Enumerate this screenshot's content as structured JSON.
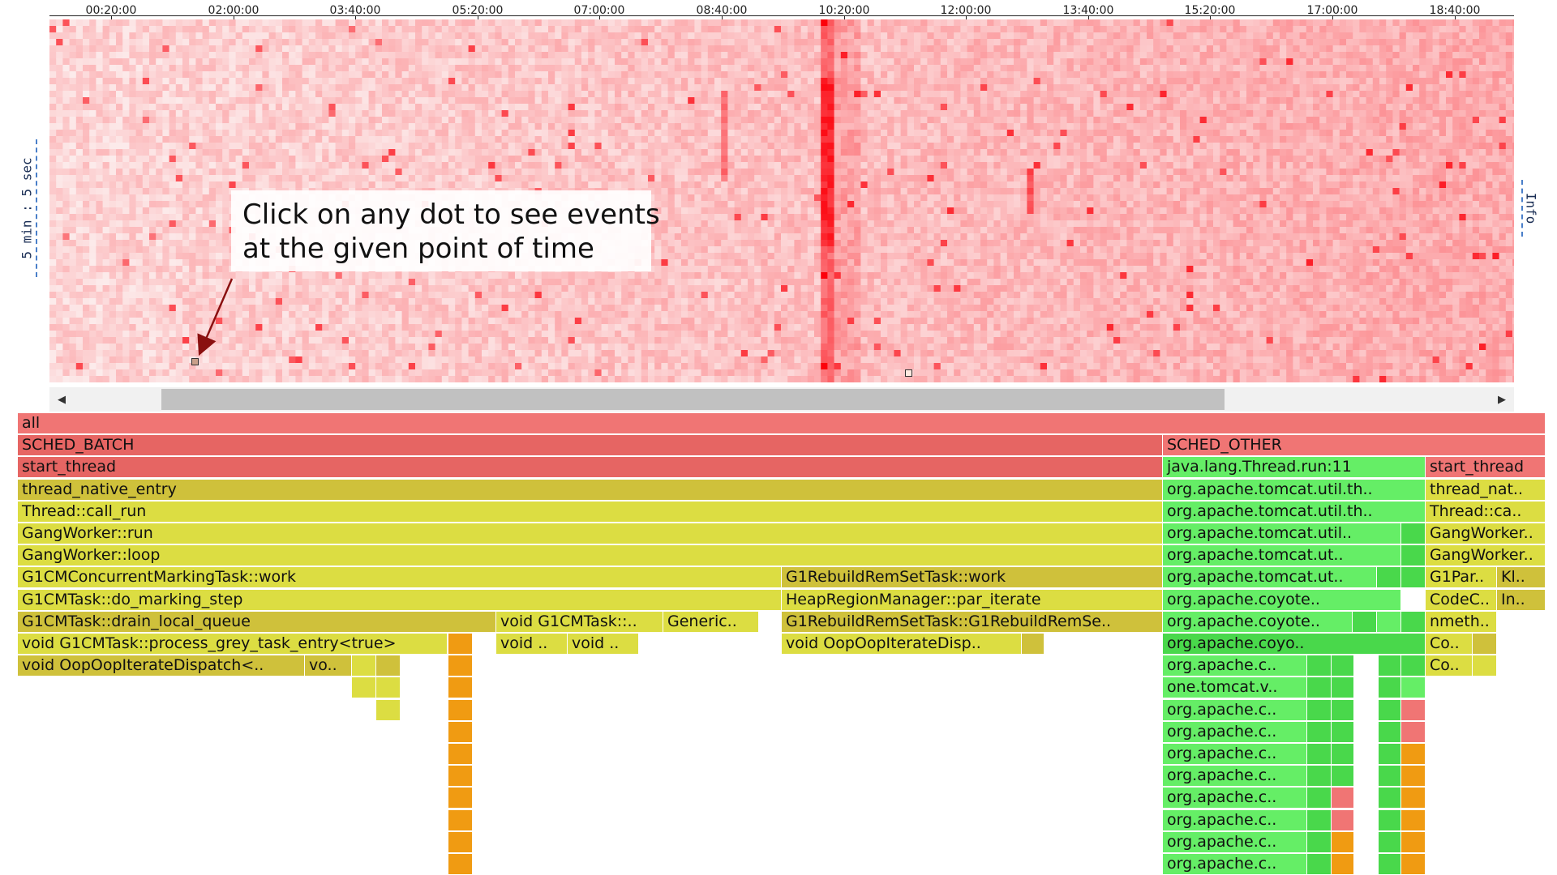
{
  "timeline": {
    "tick_labels": [
      "00:20:00",
      "02:00:00",
      "03:40:00",
      "05:20:00",
      "07:00:00",
      "08:40:00",
      "10:20:00",
      "12:00:00",
      "13:40:00",
      "15:20:00",
      "17:00:00",
      "18:40:00"
    ]
  },
  "heatmap": {
    "y_axis_label": "5 min : 5 sec",
    "info_label": "Info",
    "callout_line1": "Click on any dot to see events",
    "callout_line2": "at the given point of time"
  },
  "scrollbar": {
    "left_arrow_icon": "triangle-left-icon",
    "right_arrow_icon": "triangle-right-icon"
  },
  "colors": {
    "root_red": "#f07574",
    "deep_red": "#e66563",
    "native_yellow": "#dcdd42",
    "native_olive": "#cfc13b",
    "java_green": "#65ee66",
    "dark_green": "#49d84b",
    "kernel_orange": "#f09b12",
    "heat_hot": "#e5000d",
    "heat_cold": "#fde9e9"
  },
  "flamegraph": {
    "frames": [
      {
        "label": "all",
        "c": "red"
      },
      {
        "label": "SCHED_BATCH",
        "c": "deep"
      },
      {
        "label": "SCHED_OTHER",
        "c": "red"
      },
      {
        "label": "start_thread",
        "c": "deep"
      },
      {
        "label": "java.lang.Thread.run:11",
        "c": "green"
      },
      {
        "label": "start_thread",
        "c": "red"
      },
      {
        "label": "thread_native_entry",
        "c": "olive"
      },
      {
        "label": "org.apache.tomcat.util.th..",
        "c": "green"
      },
      {
        "label": "thread_nat..",
        "c": "yellow"
      },
      {
        "label": "Thread::call_run",
        "c": "yellow"
      },
      {
        "label": "org.apache.tomcat.util.th..",
        "c": "green"
      },
      {
        "label": "Thread::ca..",
        "c": "yellow"
      },
      {
        "label": "GangWorker::run",
        "c": "yellow"
      },
      {
        "label": "org.apache.tomcat.util..",
        "c": "green"
      },
      {
        "label": "GangWorker..",
        "c": "yellow"
      },
      {
        "label": "GangWorker::loop",
        "c": "yellow"
      },
      {
        "label": "org.apache.tomcat.ut..",
        "c": "green"
      },
      {
        "label": "GangWorker..",
        "c": "yellow"
      },
      {
        "label": "G1CMConcurrentMarkingTask::work",
        "c": "yellow"
      },
      {
        "label": "G1RebuildRemSetTask::work",
        "c": "olive"
      },
      {
        "label": "org.apache.tomcat.ut..",
        "c": "green"
      },
      {
        "label": "G1Par..",
        "c": "yellow"
      },
      {
        "label": "Kl..",
        "c": "olive"
      },
      {
        "label": "G1CMTask::do_marking_step",
        "c": "yellow"
      },
      {
        "label": "HeapRegionManager::par_iterate",
        "c": "yellow"
      },
      {
        "label": "org.apache.coyote..",
        "c": "green"
      },
      {
        "label": "CodeC..",
        "c": "yellow"
      },
      {
        "label": "In..",
        "c": "olive"
      },
      {
        "label": "G1CMTask::drain_local_queue",
        "c": "olive"
      },
      {
        "label": "void G1CMTask::..",
        "c": "yellow"
      },
      {
        "label": "Generic..",
        "c": "yellow"
      },
      {
        "label": "G1RebuildRemSetTask::G1RebuildRemSe..",
        "c": "olive"
      },
      {
        "label": "org.apache.coyote..",
        "c": "green"
      },
      {
        "label": "nmeth..",
        "c": "yellow"
      },
      {
        "label": "void G1CMTask::process_grey_task_entry<true>",
        "c": "yellow"
      },
      {
        "label": "void ..",
        "c": "yellow"
      },
      {
        "label": "void ..",
        "c": "yellow"
      },
      {
        "label": "void OopOopIterateDisp..",
        "c": "yellow"
      },
      {
        "label": "org.apache.coyo..",
        "c": "dgreen"
      },
      {
        "label": "Co..",
        "c": "yellow"
      },
      {
        "label": "void OopOopIterateDispatch<..",
        "c": "olive"
      },
      {
        "label": "vo..",
        "c": "olive"
      },
      {
        "label": "org.apache.c..",
        "c": "green"
      },
      {
        "label": "Co..",
        "c": "yellow"
      },
      {
        "label": "one.tomcat.v..",
        "c": "green"
      },
      {
        "label": "org.apache.c..",
        "c": "green"
      },
      {
        "label": "org.apache.c..",
        "c": "green"
      },
      {
        "label": "org.apache.c..",
        "c": "green"
      },
      {
        "label": "org.apache.c..",
        "c": "green"
      },
      {
        "label": "org.apache.c..",
        "c": "green"
      },
      {
        "label": "org.apache.c..",
        "c": "green"
      },
      {
        "label": "org.apache.c..",
        "c": "green"
      },
      {
        "label": "org.apache.c..",
        "c": "green"
      }
    ]
  }
}
